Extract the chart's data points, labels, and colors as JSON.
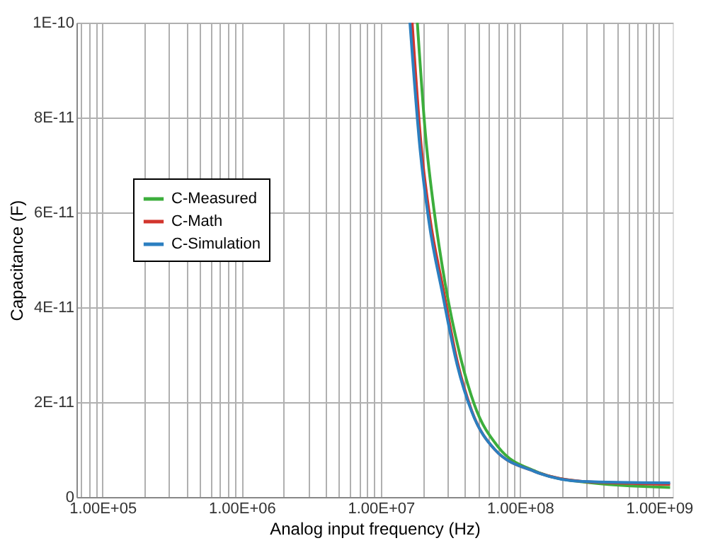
{
  "chart_data": {
    "type": "line",
    "xlabel": "Analog input frequency (Hz)",
    "ylabel": "Capacitance (F)",
    "log": "x",
    "xlim": [
      65000,
      1250000000
    ],
    "xticks": [
      {
        "value": 70000,
        "label": null
      },
      {
        "value": 80000,
        "label": null
      },
      {
        "value": 90000,
        "label": null
      },
      {
        "value": 100000,
        "label": "1.00E+05"
      },
      {
        "value": 200000,
        "label": null
      },
      {
        "value": 300000,
        "label": null
      },
      {
        "value": 400000,
        "label": null
      },
      {
        "value": 500000,
        "label": null
      },
      {
        "value": 600000,
        "label": null
      },
      {
        "value": 700000,
        "label": null
      },
      {
        "value": 800000,
        "label": null
      },
      {
        "value": 900000,
        "label": null
      },
      {
        "value": 1000000,
        "label": "1.00E+06"
      },
      {
        "value": 2000000,
        "label": null
      },
      {
        "value": 3000000,
        "label": null
      },
      {
        "value": 4000000,
        "label": null
      },
      {
        "value": 5000000,
        "label": null
      },
      {
        "value": 6000000,
        "label": null
      },
      {
        "value": 7000000,
        "label": null
      },
      {
        "value": 8000000,
        "label": null
      },
      {
        "value": 9000000,
        "label": null
      },
      {
        "value": 10000000,
        "label": "1.00E+07"
      },
      {
        "value": 20000000,
        "label": null
      },
      {
        "value": 30000000,
        "label": null
      },
      {
        "value": 40000000,
        "label": null
      },
      {
        "value": 50000000,
        "label": null
      },
      {
        "value": 60000000,
        "label": null
      },
      {
        "value": 70000000,
        "label": null
      },
      {
        "value": 80000000,
        "label": null
      },
      {
        "value": 90000000,
        "label": null
      },
      {
        "value": 100000000,
        "label": "1.00E+08"
      },
      {
        "value": 200000000,
        "label": null
      },
      {
        "value": 300000000,
        "label": null
      },
      {
        "value": 400000000,
        "label": null
      },
      {
        "value": 500000000,
        "label": null
      },
      {
        "value": 600000000,
        "label": null
      },
      {
        "value": 700000000,
        "label": null
      },
      {
        "value": 800000000,
        "label": null
      },
      {
        "value": 900000000,
        "label": null
      },
      {
        "value": 1000000000,
        "label": "1.00E+09"
      }
    ],
    "ylim": [
      0,
      1e-10
    ],
    "yticks": [
      0,
      {
        "value": 2e-11,
        "label": "2E-11"
      },
      {
        "value": 4e-11,
        "label": "4E-11"
      },
      {
        "value": 6e-11,
        "label": "6E-11"
      },
      {
        "value": 8e-11,
        "label": "8E-11"
      },
      {
        "value": 1e-10,
        "label": "1E-10"
      }
    ],
    "grid": true,
    "legend": "left",
    "line_style": "solid",
    "marker": "none",
    "series": [
      {
        "name": "C-Measured",
        "color": "#3cae3c",
        "x": [
          18300000,
          21000000,
          24000000,
          29000000,
          37000000,
          47000000,
          70000000,
          130000000,
          280000000,
          1200000000
        ],
        "values": [
          1e-10,
          7.6e-11,
          6.1e-11,
          4.5e-11,
          3e-11,
          1.95e-11,
          1.05e-11,
          5.4e-12,
          3.2e-12,
          2e-12
        ]
      },
      {
        "name": "C-Math",
        "color": "#d2352d",
        "x": [
          16800000,
          19500000,
          22500000,
          28000000,
          35500000,
          45000000,
          66000000,
          127000000,
          280000000,
          1200000000
        ],
        "values": [
          1e-10,
          7.4e-11,
          5.9e-11,
          4.4e-11,
          2.85e-11,
          1.82e-11,
          1e-11,
          5.4e-12,
          3.3e-12,
          2.7e-12
        ]
      },
      {
        "name": "C-Simulation",
        "color": "#2b7fc0",
        "x": [
          16200000,
          19200000,
          22200000,
          27700000,
          35300000,
          45000000,
          66000000,
          127000000,
          280000000,
          1200000000
        ],
        "values": [
          1e-10,
          7.3e-11,
          5.8e-11,
          4.3e-11,
          2.8e-11,
          1.8e-11,
          1e-11,
          5.4e-12,
          3.3e-12,
          3e-12
        ]
      }
    ]
  }
}
